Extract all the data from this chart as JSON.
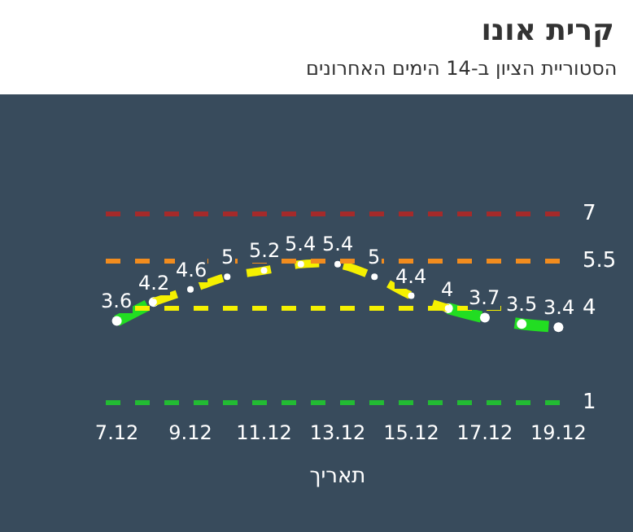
{
  "chart_data": {
    "type": "line",
    "title": "קרית אונו",
    "subtitle": "הסטוריית הציון ב-14 הימים האחרונים",
    "xlabel": "תאריך",
    "categories": [
      "7.12",
      null,
      "9.12",
      null,
      "11.12",
      null,
      "13.12",
      null,
      "15.12",
      null,
      "17.12",
      null,
      "19.12"
    ],
    "series": [
      {
        "color": "#22dd22",
        "values": [
          3.6,
          4.2,
          null,
          null,
          null,
          null,
          null,
          null,
          null,
          4,
          3.7,
          3.5,
          3.4
        ],
        "value_labels": [
          "3.6",
          null,
          null,
          null,
          null,
          null,
          null,
          null,
          null,
          "4",
          "3.7",
          "3.5",
          "3.4"
        ]
      },
      {
        "color": "#f5f000",
        "values": [
          null,
          4.2,
          4.6,
          5,
          5.2,
          5.4,
          5.4,
          5,
          4.4,
          4,
          null,
          null,
          null
        ],
        "value_labels": [
          null,
          "4.2",
          "4.6",
          "5",
          "5.2",
          "5.4",
          "5.4",
          "5",
          "4.4",
          null,
          null,
          null,
          null
        ]
      }
    ],
    "tick_labels": "x",
    "grid": false,
    "marker": "circle",
    "line_style": "dashed",
    "ref_lines": [
      {
        "axis": "y",
        "value": 7,
        "label": "7",
        "color": "#a52a2a",
        "line_style": "dashed"
      },
      {
        "axis": "y",
        "value": 5.5,
        "label": "5.5",
        "color": "#f28c1e",
        "line_style": "dashed"
      },
      {
        "axis": "y",
        "value": 4,
        "label": "4",
        "color": "#f5f000",
        "line_style": "dashed"
      },
      {
        "axis": "y",
        "value": 1,
        "label": "1",
        "color": "#22bb33",
        "line_style": "dashed"
      }
    ]
  }
}
